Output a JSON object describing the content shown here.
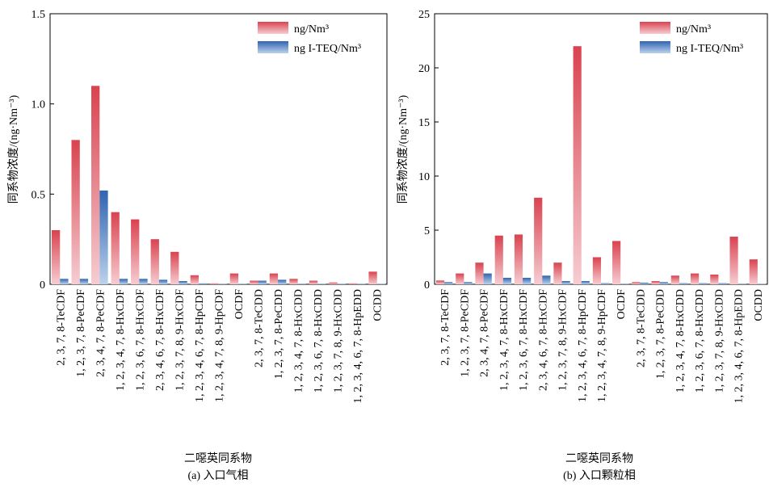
{
  "chart_data": [
    {
      "type": "bar",
      "panel_label": "(a) 入口气相",
      "xlabel": "二噁英同系物",
      "ylabel": "同系物浓度/(ng·Nm⁻³)",
      "ylim": [
        0,
        1.5
      ],
      "yticks": [
        "0",
        "0.5",
        "1.0",
        "1.5"
      ],
      "ytick_values": [
        0,
        0.5,
        1.0,
        1.5
      ],
      "legend_position": "top-right",
      "categories": [
        "2, 3, 7, 8-TeCDF",
        "1, 2, 3, 7, 8-PeCDF",
        "2, 3, 4, 7, 8-PeCDF",
        "1, 2, 3, 4, 7, 8-HxCDF",
        "1, 2, 3, 6, 7, 8-HxCDF",
        "2, 3, 4, 6, 7, 8-HxCDF",
        "1, 2, 3, 7, 8, 9-HxCDF",
        "1, 2, 3, 4, 6, 7, 8-HpCDF",
        "1, 2, 3, 4, 7, 8, 9-HpCDF",
        "OCDF",
        "2, 3, 7, 8-TeCDD",
        "1, 2, 3, 7, 8-PeCDD",
        "1, 2, 3, 4, 7, 8-HxCDD",
        "1, 2, 3, 6, 7, 8-HxCDD",
        "1, 2, 3, 7, 8, 9-HxCDD",
        "1, 2, 3, 4, 6, 7, 8-HpEDD",
        "OCDD"
      ],
      "series": [
        {
          "name": "ng/Nm³",
          "color": "#d9434f",
          "values": [
            0.3,
            0.8,
            1.1,
            0.4,
            0.36,
            0.25,
            0.18,
            0.05,
            0.005,
            0.06,
            0.02,
            0.06,
            0.03,
            0.02,
            0.01,
            0.005,
            0.07
          ]
        },
        {
          "name": "ng I-TEQ/Nm³",
          "color": "#2f64b0",
          "values": [
            0.03,
            0.03,
            0.52,
            0.03,
            0.03,
            0.025,
            0.018,
            0.005,
            0.0005,
            0.0006,
            0.02,
            0.025,
            0.003,
            0.002,
            0.001,
            0.0005,
            0.0001
          ]
        }
      ]
    },
    {
      "type": "bar",
      "panel_label": "(b) 入口颗粒相",
      "xlabel": "二噁英同系物",
      "ylabel": "同系物浓度/(ng·Nm⁻³)",
      "ylim": [
        0,
        25
      ],
      "yticks": [
        "0",
        "5",
        "10",
        "15",
        "20",
        "25"
      ],
      "ytick_values": [
        0,
        5,
        10,
        15,
        20,
        25
      ],
      "legend_position": "top-right",
      "categories": [
        "2, 3, 7, 8-TeCDF",
        "1, 2, 3, 7, 8-PeCDF",
        "2, 3, 4, 7, 8-PeCDF",
        "1, 2, 3, 4, 7, 8-HxCDF",
        "1, 2, 3, 6, 7, 8-HxCDF",
        "2, 3, 4, 6, 7, 8-HxCDF",
        "1, 2, 3, 7, 8, 9-HxCDF",
        "1, 2, 3, 4, 6, 7, 8-HpCDF",
        "1, 2, 3, 4, 7, 8, 9-HpCDF",
        "OCDF",
        "2, 3, 7, 8-TeCDD",
        "1, 2, 3, 7, 8-PeCDD",
        "1, 2, 3, 4, 7, 8-HxCDD",
        "1, 2, 3, 6, 7, 8-HxCDD",
        "1, 2, 3, 7, 8, 9-HxCDD",
        "1, 2, 3, 4, 6, 7, 8-HpEDD",
        "OCDD"
      ],
      "series": [
        {
          "name": "ng/Nm³",
          "color": "#d9434f",
          "values": [
            0.35,
            1.0,
            2.0,
            4.5,
            4.6,
            8.0,
            2.0,
            22.0,
            2.5,
            4.0,
            0.2,
            0.3,
            0.8,
            1.0,
            0.9,
            4.4,
            2.3
          ]
        },
        {
          "name": "ng I-TEQ/Nm³",
          "color": "#2f64b0",
          "values": [
            0.2,
            0.2,
            1.0,
            0.6,
            0.6,
            0.8,
            0.3,
            0.3,
            0.1,
            0.05,
            0.15,
            0.2,
            0.1,
            0.1,
            0.1,
            0.05,
            0.01
          ]
        }
      ]
    }
  ]
}
